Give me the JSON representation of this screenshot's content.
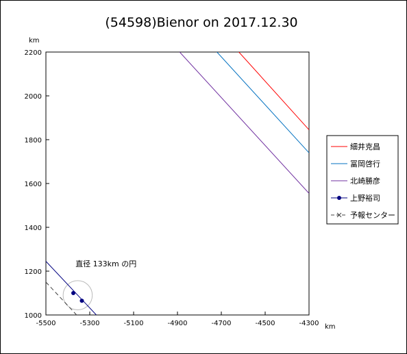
{
  "chart_data": {
    "type": "line",
    "title": "(54598)Bienor on 2017.12.30",
    "xlabel": "km",
    "ylabel": "km",
    "xlim": [
      -5500,
      -4300
    ],
    "ylim": [
      1000,
      2200
    ],
    "xticks": [
      "-5500",
      "-5300",
      "-5100",
      "-4900",
      "-4700",
      "-4500",
      "-4300"
    ],
    "yticks": [
      "1000",
      "1200",
      "1400",
      "1600",
      "1800",
      "2000",
      "2200"
    ],
    "grid": false,
    "legend_position": "right",
    "series": [
      {
        "name": "細井克昌",
        "color": "#ff0000",
        "marker": "none",
        "dash": "solid",
        "points": [
          [
            -4620,
            2200
          ],
          [
            -4300,
            1845
          ]
        ]
      },
      {
        "name": "冨岡啓行",
        "color": "#0070c0",
        "marker": "none",
        "dash": "solid",
        "points": [
          [
            -4720,
            2200
          ],
          [
            -4300,
            1740
          ]
        ]
      },
      {
        "name": "北崎勝彦",
        "color": "#7030a0",
        "marker": "none",
        "dash": "solid",
        "points": [
          [
            -4890,
            2200
          ],
          [
            -4300,
            1555
          ]
        ]
      },
      {
        "name": "上野裕司",
        "color": "#000080",
        "marker": "dot",
        "dash": "solid",
        "points": [
          [
            -5500,
            1245
          ],
          [
            -5270,
            1000
          ]
        ],
        "markers": [
          [
            -5375,
            1100
          ],
          [
            -5336,
            1065
          ]
        ]
      },
      {
        "name": "予報センター",
        "color": "#404040",
        "marker": "x",
        "dash": "dashed",
        "points": [
          [
            -5500,
            1150
          ],
          [
            -5360,
            1000
          ]
        ]
      }
    ],
    "annotation": {
      "text": "直径 133km の円",
      "x": -5365,
      "y": 1210
    },
    "circle": {
      "cx": -5355,
      "cy": 1090,
      "diameter_km": 133,
      "color": "#bbbbbb"
    }
  }
}
